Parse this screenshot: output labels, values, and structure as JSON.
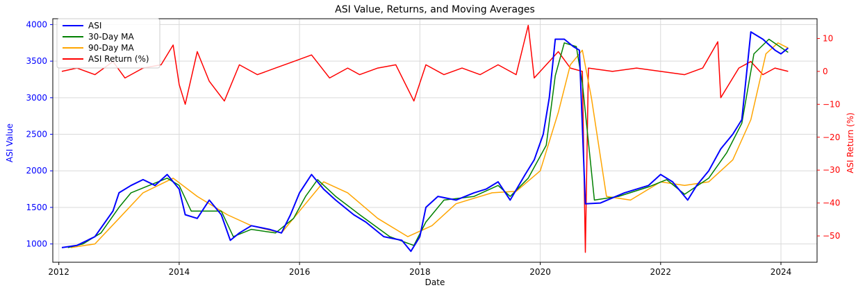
{
  "chart_data": {
    "type": "line",
    "title": "ASI Value, Returns, and Moving Averages",
    "xlabel": "Date",
    "ylabel_left": "ASI Value",
    "ylabel_right": "ASI Return (%)",
    "xlim": [
      2011.9,
      2024.6
    ],
    "ylim_left": [
      750,
      4080
    ],
    "ylim_right": [
      -58,
      16
    ],
    "x_ticks": [
      "2012",
      "2014",
      "2016",
      "2018",
      "2020",
      "2022",
      "2024"
    ],
    "y_ticks_left": [
      "1000",
      "1500",
      "2000",
      "2500",
      "3000",
      "3500",
      "4000"
    ],
    "y_ticks_right": [
      "10",
      "0",
      "−10",
      "−20",
      "−30",
      "−40",
      "−50"
    ],
    "grid": true,
    "legend_position": "top-left",
    "colors": {
      "asi": "#0000ff",
      "ma30": "#008000",
      "ma90": "#ffa500",
      "returns": "#ff0000",
      "left_axis": "#0000ff",
      "right_axis": "#ff0000"
    },
    "series": [
      {
        "name": "ASI",
        "axis": "left",
        "points": [
          [
            2012.05,
            950
          ],
          [
            2012.3,
            980
          ],
          [
            2012.6,
            1100
          ],
          [
            2012.9,
            1450
          ],
          [
            2013.0,
            1700
          ],
          [
            2013.2,
            1800
          ],
          [
            2013.4,
            1880
          ],
          [
            2013.6,
            1800
          ],
          [
            2013.8,
            1950
          ],
          [
            2014.0,
            1750
          ],
          [
            2014.1,
            1400
          ],
          [
            2014.3,
            1350
          ],
          [
            2014.5,
            1600
          ],
          [
            2014.7,
            1400
          ],
          [
            2014.85,
            1050
          ],
          [
            2015.0,
            1150
          ],
          [
            2015.2,
            1250
          ],
          [
            2015.5,
            1200
          ],
          [
            2015.7,
            1150
          ],
          [
            2015.85,
            1400
          ],
          [
            2016.0,
            1700
          ],
          [
            2016.2,
            1950
          ],
          [
            2016.4,
            1750
          ],
          [
            2016.6,
            1600
          ],
          [
            2016.9,
            1400
          ],
          [
            2017.1,
            1300
          ],
          [
            2017.4,
            1100
          ],
          [
            2017.7,
            1050
          ],
          [
            2017.85,
            900
          ],
          [
            2018.0,
            1100
          ],
          [
            2018.1,
            1500
          ],
          [
            2018.3,
            1650
          ],
          [
            2018.6,
            1600
          ],
          [
            2018.9,
            1700
          ],
          [
            2019.1,
            1750
          ],
          [
            2019.3,
            1850
          ],
          [
            2019.5,
            1600
          ],
          [
            2019.75,
            1950
          ],
          [
            2019.9,
            2150
          ],
          [
            2020.05,
            2500
          ],
          [
            2020.15,
            3000
          ],
          [
            2020.25,
            3800
          ],
          [
            2020.4,
            3800
          ],
          [
            2020.55,
            3700
          ],
          [
            2020.65,
            3650
          ],
          [
            2020.75,
            1550
          ],
          [
            2021.0,
            1560
          ],
          [
            2021.4,
            1700
          ],
          [
            2021.8,
            1800
          ],
          [
            2022.0,
            1950
          ],
          [
            2022.2,
            1850
          ],
          [
            2022.45,
            1600
          ],
          [
            2022.6,
            1800
          ],
          [
            2022.8,
            2000
          ],
          [
            2023.0,
            2300
          ],
          [
            2023.2,
            2500
          ],
          [
            2023.35,
            2700
          ],
          [
            2023.5,
            3900
          ],
          [
            2023.7,
            3800
          ],
          [
            2023.9,
            3650
          ],
          [
            2024.0,
            3600
          ],
          [
            2024.12,
            3680
          ]
        ]
      },
      {
        "name": "30-Day MA",
        "axis": "left",
        "points": [
          [
            2012.15,
            950
          ],
          [
            2012.4,
            1000
          ],
          [
            2012.7,
            1150
          ],
          [
            2013.0,
            1500
          ],
          [
            2013.2,
            1700
          ],
          [
            2013.5,
            1800
          ],
          [
            2013.8,
            1900
          ],
          [
            2014.0,
            1800
          ],
          [
            2014.2,
            1450
          ],
          [
            2014.4,
            1450
          ],
          [
            2014.7,
            1450
          ],
          [
            2014.9,
            1100
          ],
          [
            2015.2,
            1200
          ],
          [
            2015.6,
            1150
          ],
          [
            2015.9,
            1350
          ],
          [
            2016.1,
            1650
          ],
          [
            2016.3,
            1880
          ],
          [
            2016.6,
            1650
          ],
          [
            2017.0,
            1400
          ],
          [
            2017.5,
            1100
          ],
          [
            2017.9,
            980
          ],
          [
            2018.1,
            1300
          ],
          [
            2018.4,
            1600
          ],
          [
            2018.9,
            1650
          ],
          [
            2019.3,
            1800
          ],
          [
            2019.5,
            1650
          ],
          [
            2019.8,
            1900
          ],
          [
            2020.1,
            2350
          ],
          [
            2020.25,
            3300
          ],
          [
            2020.4,
            3750
          ],
          [
            2020.6,
            3700
          ],
          [
            2020.7,
            3200
          ],
          [
            2020.9,
            1600
          ],
          [
            2021.3,
            1650
          ],
          [
            2021.8,
            1780
          ],
          [
            2022.1,
            1880
          ],
          [
            2022.4,
            1680
          ],
          [
            2022.8,
            1900
          ],
          [
            2023.1,
            2250
          ],
          [
            2023.35,
            2650
          ],
          [
            2023.55,
            3600
          ],
          [
            2023.8,
            3800
          ],
          [
            2024.12,
            3620
          ]
        ]
      },
      {
        "name": "90-Day MA",
        "axis": "left",
        "points": [
          [
            2012.2,
            950
          ],
          [
            2012.6,
            1000
          ],
          [
            2013.0,
            1350
          ],
          [
            2013.4,
            1700
          ],
          [
            2013.9,
            1900
          ],
          [
            2014.3,
            1650
          ],
          [
            2014.8,
            1400
          ],
          [
            2015.2,
            1250
          ],
          [
            2015.7,
            1150
          ],
          [
            2016.0,
            1450
          ],
          [
            2016.4,
            1850
          ],
          [
            2016.8,
            1700
          ],
          [
            2017.3,
            1350
          ],
          [
            2017.8,
            1100
          ],
          [
            2018.2,
            1250
          ],
          [
            2018.6,
            1550
          ],
          [
            2019.2,
            1700
          ],
          [
            2019.6,
            1720
          ],
          [
            2020.0,
            2000
          ],
          [
            2020.3,
            2800
          ],
          [
            2020.5,
            3450
          ],
          [
            2020.7,
            3650
          ],
          [
            2020.85,
            3000
          ],
          [
            2021.1,
            1650
          ],
          [
            2021.5,
            1600
          ],
          [
            2022.0,
            1850
          ],
          [
            2022.4,
            1800
          ],
          [
            2022.8,
            1850
          ],
          [
            2023.2,
            2150
          ],
          [
            2023.5,
            2700
          ],
          [
            2023.75,
            3600
          ],
          [
            2023.95,
            3750
          ],
          [
            2024.12,
            3680
          ]
        ]
      },
      {
        "name": "ASI Return (%)",
        "axis": "right",
        "points": [
          [
            2012.05,
            0
          ],
          [
            2012.3,
            1
          ],
          [
            2012.6,
            -1
          ],
          [
            2012.9,
            3
          ],
          [
            2013.1,
            -2
          ],
          [
            2013.4,
            1
          ],
          [
            2013.7,
            2
          ],
          [
            2013.9,
            8
          ],
          [
            2014.0,
            -4
          ],
          [
            2014.1,
            -10
          ],
          [
            2014.3,
            6
          ],
          [
            2014.5,
            -3
          ],
          [
            2014.75,
            -9
          ],
          [
            2015.0,
            2
          ],
          [
            2015.3,
            -1
          ],
          [
            2015.6,
            1
          ],
          [
            2015.9,
            3
          ],
          [
            2016.2,
            5
          ],
          [
            2016.5,
            -2
          ],
          [
            2016.8,
            1
          ],
          [
            2017.0,
            -1
          ],
          [
            2017.3,
            1
          ],
          [
            2017.6,
            2
          ],
          [
            2017.9,
            -9
          ],
          [
            2018.1,
            2
          ],
          [
            2018.4,
            -1
          ],
          [
            2018.7,
            1
          ],
          [
            2019.0,
            -1
          ],
          [
            2019.3,
            2
          ],
          [
            2019.6,
            -1
          ],
          [
            2019.8,
            14
          ],
          [
            2019.9,
            -2
          ],
          [
            2020.1,
            2
          ],
          [
            2020.3,
            6
          ],
          [
            2020.5,
            1
          ],
          [
            2020.7,
            0
          ],
          [
            2020.75,
            -55
          ],
          [
            2020.8,
            1
          ],
          [
            2021.2,
            0
          ],
          [
            2021.6,
            1
          ],
          [
            2022.0,
            0
          ],
          [
            2022.4,
            -1
          ],
          [
            2022.7,
            1
          ],
          [
            2022.95,
            9
          ],
          [
            2023.0,
            -8
          ],
          [
            2023.3,
            1
          ],
          [
            2023.5,
            3
          ],
          [
            2023.7,
            -1
          ],
          [
            2023.9,
            1
          ],
          [
            2024.12,
            0
          ]
        ]
      }
    ]
  }
}
